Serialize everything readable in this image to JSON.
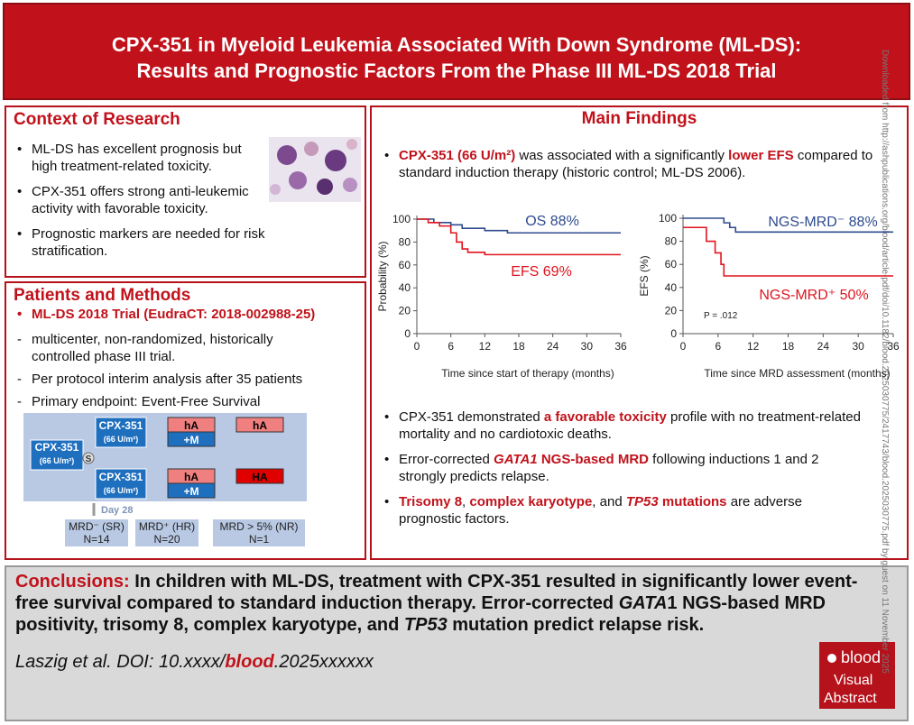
{
  "header": {
    "title": [
      "CPX-351 in Myeloid Leukemia Associated With Down Syndrome (ML-DS):",
      "Results and Prognostic Factors From the Phase III ML-DS 2018 Trial"
    ]
  },
  "context": {
    "heading": "Context of Research",
    "bullets": [
      "ML-DS has excellent prognosis but high treatment-related toxicity.",
      "CPX-351 offers strong anti-leukemic activity with favorable toxicity.",
      "Prognostic markers are needed for risk stratification."
    ]
  },
  "methods": {
    "heading": "Patients and Methods",
    "trial": "ML-DS 2018 Trial (EudraCT: 2018-002988-25)",
    "items": [
      "multicenter, non-randomized, historically controlled phase III trial.",
      "Per protocol interim analysis after 35 patients",
      "Primary endpoint: Event-Free Survival"
    ],
    "diagram": {
      "drug": [
        "CPX-351",
        "(66 U/m²)"
      ],
      "randomization": "S",
      "arm1": [
        "hA",
        "+M",
        "hA"
      ],
      "arm2": [
        "hA",
        "+M",
        "HA"
      ],
      "day": "Day 28",
      "groups": [
        [
          "MRD⁻ (SR)",
          "N=14"
        ],
        [
          "MRD⁺ (HR)",
          "N=20"
        ],
        [
          "MRD > 5% (NR)",
          "N=1"
        ]
      ]
    }
  },
  "findings": {
    "heading": "Main Findings",
    "lead": [
      "CPX-351 (66 U/m²)",
      " was associated with a significantly ",
      "lower EFS",
      " compared to standard induction therapy (historic control; ML-DS 2006)."
    ],
    "charts": [
      {
        "type": "line",
        "ylabel": "Probability (%)",
        "xlabel": "Time since start of therapy (months)",
        "xlim": [
          0,
          36
        ],
        "ylim": [
          0,
          100
        ],
        "xticks": [
          0,
          6,
          12,
          18,
          24,
          30,
          36
        ],
        "yticks": [
          0,
          20,
          40,
          60,
          80,
          100
        ],
        "series": [
          {
            "name": "OS 88%",
            "color": "#2f4b8f",
            "x": [
              0,
              3,
              3,
              6,
              6,
              8,
              8,
              12,
              12,
              16,
              16,
              36
            ],
            "values": [
              100,
              100,
              97,
              97,
              95,
              95,
              92,
              92,
              90,
              90,
              88,
              88
            ]
          },
          {
            "name": "EFS 69%",
            "color": "#e0141e",
            "x": [
              0,
              2,
              2,
              4,
              4,
              6,
              6,
              7,
              7,
              8,
              8,
              9,
              9,
              12,
              12,
              36
            ],
            "values": [
              100,
              100,
              97,
              97,
              94,
              94,
              88,
              88,
              80,
              80,
              74,
              74,
              71,
              71,
              69,
              69
            ]
          }
        ]
      },
      {
        "type": "line",
        "ylabel": "EFS (%)",
        "xlabel": "Time since MRD assessment (months)",
        "xlim": [
          0,
          36
        ],
        "ylim": [
          0,
          100
        ],
        "xticks": [
          0,
          6,
          12,
          18,
          24,
          30,
          36
        ],
        "yticks": [
          0,
          20,
          40,
          60,
          80,
          100
        ],
        "annotation": "P = .012",
        "series": [
          {
            "name": "NGS-MRD⁻ 88%",
            "color": "#2f4b8f",
            "x": [
              0,
              7,
              7,
              8,
              8,
              9,
              9,
              36
            ],
            "values": [
              100,
              100,
              96,
              96,
              92,
              92,
              88,
              88
            ]
          },
          {
            "name": "NGS-MRD⁺ 50%",
            "color": "#e0141e",
            "x": [
              0,
              4,
              4,
              5.5,
              5.5,
              6.5,
              6.5,
              7,
              7,
              36
            ],
            "values": [
              92,
              92,
              80,
              80,
              70,
              70,
              60,
              60,
              50,
              50
            ]
          }
        ]
      }
    ],
    "bullets": [
      [
        "CPX-351 demonstrated ",
        "a favorable toxicity",
        " profile with no treatment-related mortality and no cardiotoxic deaths."
      ],
      [
        "Error-corrected ",
        "GATA1",
        " NGS-based MRD",
        " following inductions 1 and 2 strongly predicts relapse."
      ],
      [
        "Trisomy 8",
        ", ",
        "complex karyotype",
        ", and ",
        "TP53",
        " mutations",
        " are adverse prognostic factors."
      ]
    ]
  },
  "conclusions": {
    "label": "Conclusions:",
    "text": [
      " In children with ML-DS, treatment with CPX-351 resulted in significantly lower event-free survival compared to standard induction therapy. Error-corrected ",
      "GATA",
      "1 NGS-based MRD positivity, trisomy 8, complex karyotype, and ",
      "TP53",
      " mutation predict relapse risk."
    ]
  },
  "citation": [
    "Laszig et al. DOI: 10.xxxx/",
    "blood",
    ".2025xxxxxx"
  ],
  "logo": [
    "blood",
    "Visual",
    "Abstract"
  ],
  "watermark": "Downloaded from http://ashpublications.org/blood/article-pdf/doi/10.1182/blood.2025030775/2417743/blood.2025030775.pdf by guest on 11 November 2025"
}
